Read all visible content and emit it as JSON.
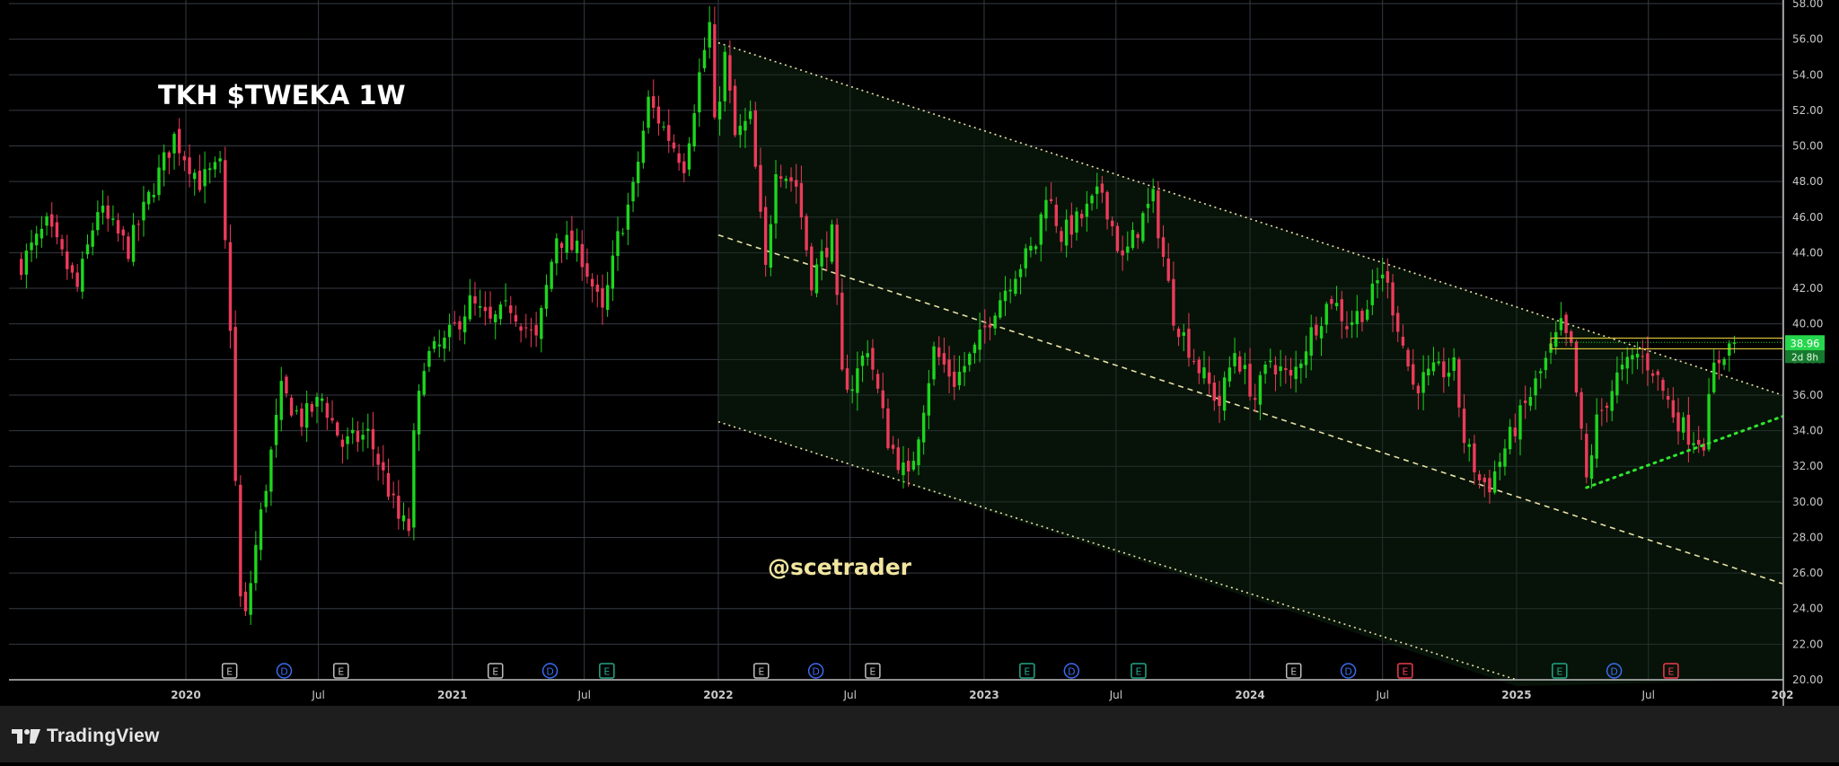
{
  "title": "TKH $TWEKA 1W",
  "watermark": "@scetrader",
  "brand": "TradingView",
  "colors": {
    "background": "#000000",
    "grid": "#363a45",
    "up": "#1ed51e",
    "down": "#ec3b5a",
    "channel": "#e8e0a6",
    "support": "#2ee62e",
    "resistance_zone": "#d8c23c",
    "price_tag": "#26d64d",
    "earnings_gray": "#bdbdbd",
    "dividend_blue": "#3a6cf0",
    "earnings_green": "#23a688",
    "earnings_red": "#ef3b4e"
  },
  "last_price": {
    "value": "38.96",
    "countdown": "2d 8h"
  },
  "chart_data": {
    "type": "candlestick",
    "title": "TKH $TWEKA 1W",
    "timeframe": "1W",
    "y_axis_side": "right",
    "ylim": [
      20,
      58
    ],
    "y_ticks": [
      "20.00",
      "22.00",
      "24.00",
      "26.00",
      "28.00",
      "30.00",
      "32.00",
      "34.00",
      "36.00",
      "38.00",
      "40.00",
      "42.00",
      "44.00",
      "46.00",
      "48.00",
      "50.00",
      "52.00",
      "54.00",
      "56.00",
      "58.00"
    ],
    "x_ticks": [
      {
        "label": "2020",
        "date": "2020-01-01"
      },
      {
        "label": "Jul",
        "date": "2020-07-01"
      },
      {
        "label": "2021",
        "date": "2021-01-01"
      },
      {
        "label": "Jul",
        "date": "2021-07-01"
      },
      {
        "label": "2022",
        "date": "2022-01-01"
      },
      {
        "label": "Jul",
        "date": "2022-07-01"
      },
      {
        "label": "2023",
        "date": "2023-01-01"
      },
      {
        "label": "Jul",
        "date": "2023-07-01"
      },
      {
        "label": "2024",
        "date": "2024-01-01"
      },
      {
        "label": "Jul",
        "date": "2024-07-01"
      },
      {
        "label": "2025",
        "date": "2025-01-01"
      },
      {
        "label": "Jul",
        "date": "2025-07-01"
      },
      {
        "label": "202",
        "date": "2026-01-01"
      }
    ],
    "grid": true,
    "price_path": [
      [
        "2019-05-20",
        43.4
      ],
      [
        "2019-06-24",
        45.5
      ],
      [
        "2019-08-05",
        42.0
      ],
      [
        "2019-09-02",
        46.5
      ],
      [
        "2019-10-14",
        44.2
      ],
      [
        "2019-11-18",
        47.8
      ],
      [
        "2019-12-16",
        50.5
      ],
      [
        "2020-01-20",
        48.0
      ],
      [
        "2020-02-17",
        48.8
      ],
      [
        "2020-03-02",
        40.0
      ],
      [
        "2020-03-09",
        31.0
      ],
      [
        "2020-03-16",
        24.5
      ],
      [
        "2020-03-23",
        23.5
      ],
      [
        "2020-04-06",
        27.5
      ],
      [
        "2020-04-20",
        31.0
      ],
      [
        "2020-05-11",
        36.2
      ],
      [
        "2020-06-08",
        34.6
      ],
      [
        "2020-07-06",
        35.8
      ],
      [
        "2020-08-03",
        33.2
      ],
      [
        "2020-09-07",
        33.8
      ],
      [
        "2020-09-28",
        31.5
      ],
      [
        "2020-10-19",
        29.0
      ],
      [
        "2020-11-02",
        28.5
      ],
      [
        "2020-11-09",
        33.5
      ],
      [
        "2020-11-23",
        38.0
      ],
      [
        "2020-12-21",
        38.9
      ],
      [
        "2021-01-25",
        41.2
      ],
      [
        "2021-02-22",
        40.0
      ],
      [
        "2021-03-22",
        41.0
      ],
      [
        "2021-04-26",
        39.0
      ],
      [
        "2021-05-24",
        45.0
      ],
      [
        "2021-06-28",
        43.8
      ],
      [
        "2021-07-26",
        40.5
      ],
      [
        "2021-08-16",
        44.8
      ],
      [
        "2021-09-06",
        47.5
      ],
      [
        "2021-09-27",
        52.5
      ],
      [
        "2021-10-25",
        50.5
      ],
      [
        "2021-11-15",
        49.0
      ],
      [
        "2021-12-06",
        54.0
      ],
      [
        "2021-12-20",
        56.8
      ],
      [
        "2021-12-27",
        51.0
      ],
      [
        "2022-01-10",
        55.0
      ],
      [
        "2022-01-24",
        50.5
      ],
      [
        "2022-02-14",
        51.5
      ],
      [
        "2022-03-07",
        43.0
      ],
      [
        "2022-03-21",
        49.0
      ],
      [
        "2022-04-18",
        47.8
      ],
      [
        "2022-05-09",
        42.5
      ],
      [
        "2022-06-06",
        45.0
      ],
      [
        "2022-06-20",
        37.0
      ],
      [
        "2022-07-04",
        36.6
      ],
      [
        "2022-07-25",
        38.8
      ],
      [
        "2022-08-22",
        33.5
      ],
      [
        "2022-09-19",
        31.2
      ],
      [
        "2022-10-03",
        34.0
      ],
      [
        "2022-10-24",
        38.5
      ],
      [
        "2022-11-21",
        36.8
      ],
      [
        "2022-12-19",
        38.5
      ],
      [
        "2023-01-16",
        41.0
      ],
      [
        "2023-02-13",
        43.0
      ],
      [
        "2023-03-13",
        44.5
      ],
      [
        "2023-03-27",
        47.5
      ],
      [
        "2023-04-17",
        45.0
      ],
      [
        "2023-05-15",
        46.0
      ],
      [
        "2023-06-12",
        47.5
      ],
      [
        "2023-07-10",
        43.5
      ],
      [
        "2023-08-07",
        46.0
      ],
      [
        "2023-08-21",
        47.0
      ],
      [
        "2023-09-18",
        40.5
      ],
      [
        "2023-10-23",
        37.5
      ],
      [
        "2023-11-20",
        35.5
      ],
      [
        "2023-12-11",
        38.5
      ],
      [
        "2024-01-08",
        35.8
      ],
      [
        "2024-01-29",
        38.0
      ],
      [
        "2024-02-26",
        36.8
      ],
      [
        "2024-03-25",
        39.5
      ],
      [
        "2024-04-22",
        41.5
      ],
      [
        "2024-05-13",
        40.0
      ],
      [
        "2024-06-10",
        41.0
      ],
      [
        "2024-07-01",
        43.0
      ],
      [
        "2024-07-22",
        40.0
      ],
      [
        "2024-08-12",
        36.5
      ],
      [
        "2024-09-09",
        37.2
      ],
      [
        "2024-10-07",
        37.5
      ],
      [
        "2024-10-21",
        33.5
      ],
      [
        "2024-11-11",
        31.2
      ],
      [
        "2024-11-25",
        31.0
      ],
      [
        "2024-12-16",
        33.0
      ],
      [
        "2025-01-20",
        36.0
      ],
      [
        "2025-02-17",
        38.5
      ],
      [
        "2025-03-03",
        39.8
      ],
      [
        "2025-03-17",
        38.5
      ],
      [
        "2025-04-07",
        31.2
      ],
      [
        "2025-04-21",
        34.5
      ],
      [
        "2025-05-19",
        37.0
      ],
      [
        "2025-06-16",
        38.3
      ],
      [
        "2025-07-07",
        37.5
      ],
      [
        "2025-08-04",
        35.0
      ],
      [
        "2025-08-25",
        33.8
      ],
      [
        "2025-09-15",
        33.5
      ],
      [
        "2025-09-29",
        37.5
      ],
      [
        "2025-10-13",
        38.5
      ],
      [
        "2025-10-27",
        38.96
      ]
    ],
    "drawings": [
      {
        "type": "channel_upper",
        "style": "dotted",
        "from": [
          "2022-01-01",
          55.8
        ],
        "to": [
          "2026-01-01",
          36.0
        ]
      },
      {
        "type": "channel_middle",
        "style": "dashed",
        "from": [
          "2022-01-01",
          45.0
        ],
        "to": [
          "2026-01-01",
          25.4
        ]
      },
      {
        "type": "channel_lower",
        "style": "dotted",
        "from": [
          "2022-01-01",
          34.5
        ],
        "to": [
          "2025-01-01",
          20.0
        ]
      },
      {
        "type": "support",
        "style": "dotted",
        "from": [
          "2025-04-07",
          30.8
        ],
        "to": [
          "2026-01-01",
          34.8
        ]
      },
      {
        "type": "resistance_zone",
        "from_date": "2025-02-17",
        "y_range": [
          38.6,
          39.2
        ]
      }
    ],
    "event_markers": [
      {
        "kind": "E",
        "date": "2020-03-01",
        "color": "earnings_gray"
      },
      {
        "kind": "D",
        "date": "2020-05-15",
        "color": "dividend_blue"
      },
      {
        "kind": "E",
        "date": "2020-08-01",
        "color": "earnings_gray"
      },
      {
        "kind": "E",
        "date": "2021-03-01",
        "color": "earnings_gray"
      },
      {
        "kind": "D",
        "date": "2021-05-15",
        "color": "dividend_blue"
      },
      {
        "kind": "E",
        "date": "2021-08-01",
        "color": "earnings_green"
      },
      {
        "kind": "E",
        "date": "2022-03-01",
        "color": "earnings_gray"
      },
      {
        "kind": "D",
        "date": "2022-05-15",
        "color": "dividend_blue"
      },
      {
        "kind": "E",
        "date": "2022-08-01",
        "color": "earnings_gray"
      },
      {
        "kind": "E",
        "date": "2023-03-01",
        "color": "earnings_green"
      },
      {
        "kind": "D",
        "date": "2023-05-01",
        "color": "dividend_blue"
      },
      {
        "kind": "E",
        "date": "2023-08-01",
        "color": "earnings_green"
      },
      {
        "kind": "E",
        "date": "2024-03-01",
        "color": "earnings_gray"
      },
      {
        "kind": "D",
        "date": "2024-05-15",
        "color": "dividend_blue"
      },
      {
        "kind": "E",
        "date": "2024-08-01",
        "color": "earnings_red"
      },
      {
        "kind": "E",
        "date": "2025-03-01",
        "color": "earnings_green"
      },
      {
        "kind": "D",
        "date": "2025-05-15",
        "color": "dividend_blue"
      },
      {
        "kind": "E",
        "date": "2025-08-01",
        "color": "earnings_red"
      }
    ]
  }
}
